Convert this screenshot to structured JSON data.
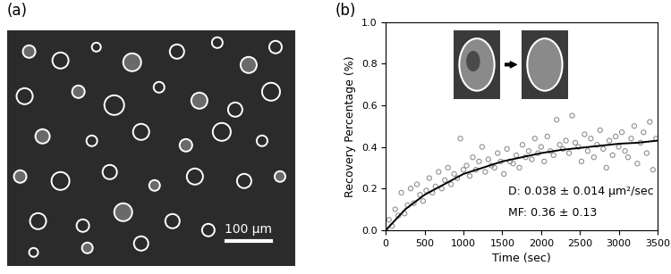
{
  "panel_labels": [
    "(a)",
    "(b)"
  ],
  "image_panel": {
    "scale_bar": "100 μm"
  },
  "chart_data": {
    "type": "scatter",
    "x_label": "Time (sec)",
    "y_label": "Recovery Percentage (%)",
    "annotations": [
      "D: 0.038 ± 0.014 μm²/sec",
      "MF: 0.36 ± 0.13"
    ],
    "xlim": [
      0,
      3500
    ],
    "ylim": [
      0,
      1.0
    ],
    "xticks": [
      0,
      500,
      1000,
      1500,
      2000,
      2500,
      3000,
      3500
    ],
    "yticks": [
      {
        "value": 0,
        "label": "0.0"
      },
      0.2,
      0.4,
      0.6,
      0.8,
      {
        "value": 1,
        "label": "1.0"
      }
    ],
    "grid": false,
    "series": [
      {
        "type": "scatter",
        "marker": "o",
        "color": "#909090",
        "x": [
          0,
          40,
          80,
          120,
          160,
          200,
          240,
          280,
          320,
          360,
          400,
          440,
          480,
          520,
          560,
          600,
          640,
          680,
          720,
          760,
          800,
          840,
          880,
          920,
          960,
          1000,
          1040,
          1080,
          1120,
          1160,
          1200,
          1240,
          1280,
          1320,
          1360,
          1400,
          1440,
          1480,
          1520,
          1560,
          1600,
          1640,
          1680,
          1720,
          1760,
          1800,
          1840,
          1880,
          1920,
          1960,
          2000,
          2040,
          2080,
          2120,
          2160,
          2200,
          2240,
          2280,
          2320,
          2360,
          2400,
          2440,
          2480,
          2520,
          2560,
          2600,
          2640,
          2680,
          2720,
          2760,
          2800,
          2840,
          2880,
          2920,
          2960,
          3000,
          3040,
          3080,
          3120,
          3160,
          3200,
          3240,
          3280,
          3320,
          3360,
          3400,
          3440,
          3480
        ],
        "values": [
          0.0,
          0.05,
          0.02,
          0.1,
          0.07,
          0.18,
          0.08,
          0.12,
          0.2,
          0.13,
          0.22,
          0.17,
          0.14,
          0.19,
          0.25,
          0.18,
          0.21,
          0.28,
          0.2,
          0.24,
          0.3,
          0.22,
          0.27,
          0.25,
          0.44,
          0.29,
          0.31,
          0.26,
          0.35,
          0.29,
          0.33,
          0.4,
          0.28,
          0.34,
          0.31,
          0.3,
          0.37,
          0.33,
          0.27,
          0.39,
          0.33,
          0.32,
          0.36,
          0.3,
          0.41,
          0.35,
          0.38,
          0.34,
          0.44,
          0.37,
          0.4,
          0.33,
          0.45,
          0.38,
          0.36,
          0.53,
          0.41,
          0.39,
          0.43,
          0.37,
          0.55,
          0.42,
          0.4,
          0.33,
          0.46,
          0.38,
          0.44,
          0.35,
          0.41,
          0.48,
          0.39,
          0.3,
          0.43,
          0.36,
          0.45,
          0.4,
          0.47,
          0.38,
          0.35,
          0.44,
          0.5,
          0.32,
          0.42,
          0.47,
          0.37,
          0.52,
          0.29,
          0.44
        ]
      },
      {
        "type": "line",
        "line_style": "solid",
        "color": "#000000",
        "x": [
          0,
          250,
          500,
          750,
          1000,
          1250,
          1500,
          1750,
          2000,
          2250,
          2500,
          2750,
          3000,
          3250,
          3500
        ],
        "values": [
          0.0,
          0.1,
          0.17,
          0.22,
          0.27,
          0.3,
          0.33,
          0.35,
          0.37,
          0.385,
          0.395,
          0.405,
          0.415,
          0.42,
          0.43
        ]
      }
    ]
  }
}
